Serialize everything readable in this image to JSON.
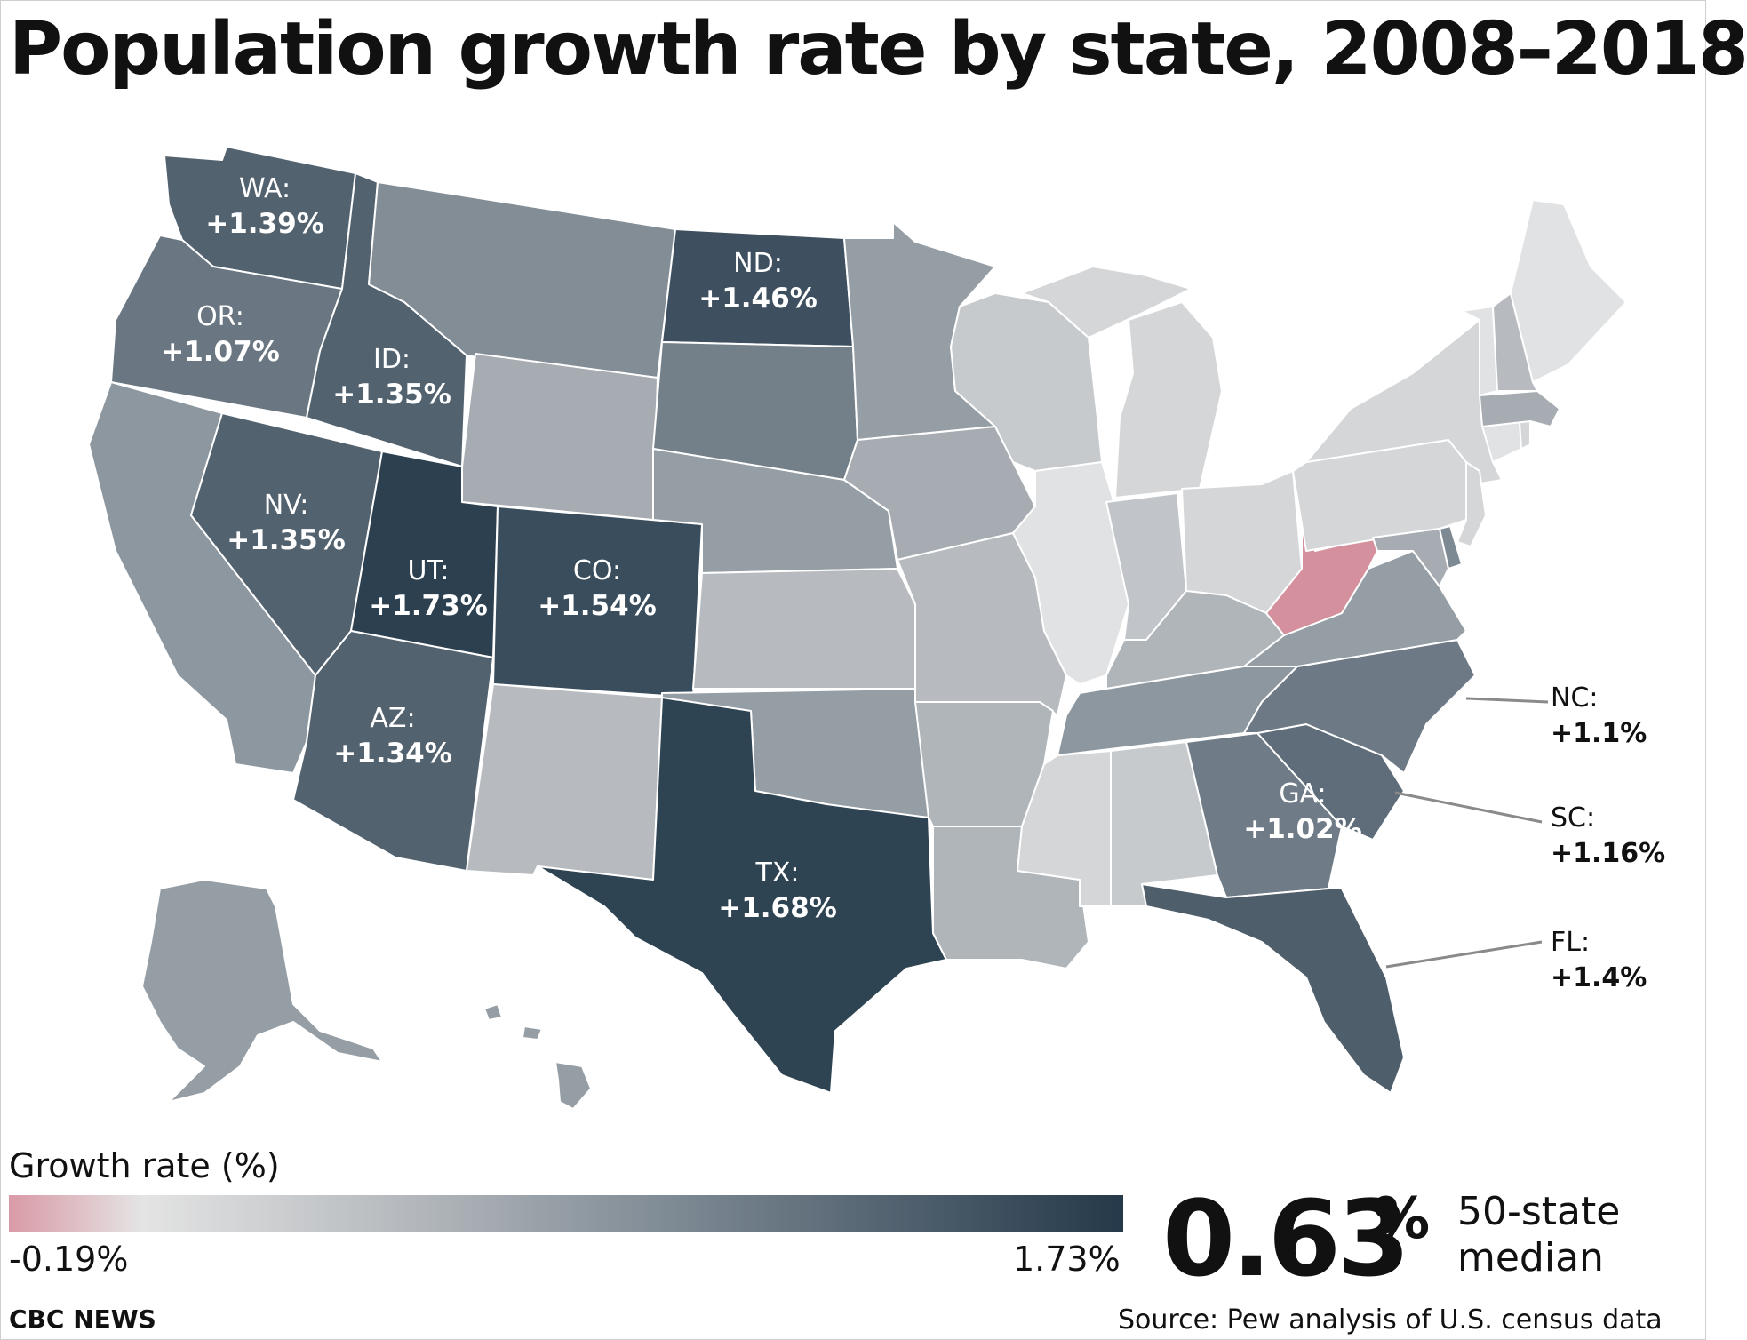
{
  "title": "Population growth rate by state, 2008–2018",
  "colors": {
    "min": "#d99aa6",
    "zero": "#e4e4e4",
    "max": "#25394a",
    "wv": "#d4919d"
  },
  "labeled_states": [
    {
      "code": "WA:",
      "value": "+1.39%"
    },
    {
      "code": "OR:",
      "value": "+1.07%"
    },
    {
      "code": "ID:",
      "value": "+1.35%"
    },
    {
      "code": "NV:",
      "value": "+1.35%"
    },
    {
      "code": "UT:",
      "value": "+1.73%"
    },
    {
      "code": "CO:",
      "value": "+1.54%"
    },
    {
      "code": "ND:",
      "value": "+1.46%"
    },
    {
      "code": "AZ:",
      "value": "+1.34%"
    },
    {
      "code": "TX:",
      "value": "+1.68%"
    },
    {
      "code": "GA:",
      "value": "+1.02%"
    }
  ],
  "callouts": [
    {
      "code": "NC:",
      "value": "+1.1%"
    },
    {
      "code": "SC:",
      "value": "+1.16%"
    },
    {
      "code": "FL:",
      "value": "+1.4%"
    }
  ],
  "legend": {
    "title": "Growth rate (%)",
    "min_label": "-0.19%",
    "max_label": "1.73%"
  },
  "median": {
    "value": "0.63",
    "unit": "%",
    "label": "50-state median"
  },
  "brand": "CBC NEWS",
  "source": "Source: Pew analysis of U.S. census data"
}
